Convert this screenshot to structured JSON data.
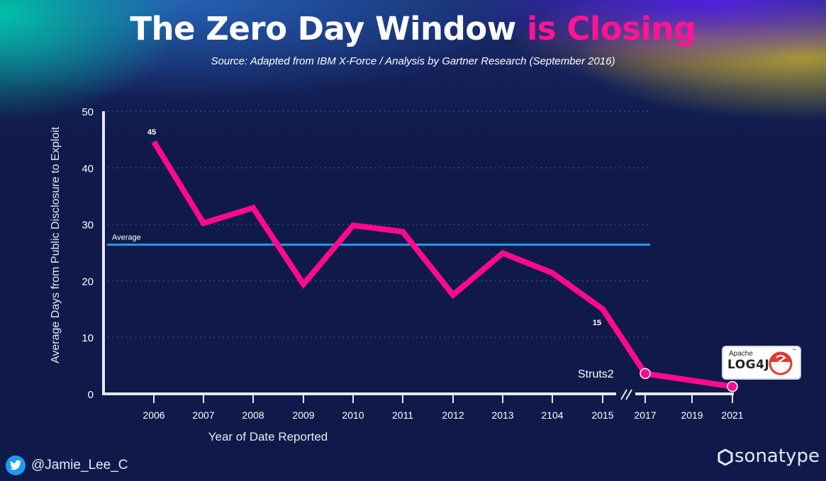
{
  "header": {
    "title_main": "The Zero Day Window ",
    "title_accent": "is Closing",
    "subtitle": "Source: Adapted from IBM X-Force / Analysis by Gartner Research (September 2016)"
  },
  "footer": {
    "twitter_handle": "@Jamie_Lee_C",
    "brand": "sonatype",
    "twitter_icon": "twitter-bird-icon",
    "brand_icon": "hexagon-icon"
  },
  "logo_badge": {
    "apache": "Apache",
    "name": "LOG4J",
    "tm": "™"
  },
  "colors": {
    "line": "#ff0a8c",
    "average": "#1ea0e6",
    "grid": "#4a4ab0",
    "axis": "#e6e8f0",
    "title_accent": "#ff1493",
    "background": "#101a4a"
  },
  "chart_data": {
    "type": "line",
    "title": "The Zero Day Window is Closing",
    "xlabel": "Year of Date Reported",
    "ylabel": "Average Days from Public Disclosure to Exploit",
    "ylim": [
      0,
      50
    ],
    "yticks": [
      0,
      10,
      20,
      30,
      40,
      50
    ],
    "grid": true,
    "categories": [
      "2006",
      "2007",
      "2008",
      "2009",
      "2010",
      "2011",
      "2012",
      "2013",
      "2104",
      "2015",
      "2017",
      "2019",
      "2021"
    ],
    "series": [
      {
        "name": "Average Days",
        "points": [
          {
            "x": "2006",
            "y": 44.6
          },
          {
            "x": "2007",
            "y": 30.2
          },
          {
            "x": "2008",
            "y": 32.9
          },
          {
            "x": "2009",
            "y": 19.4
          },
          {
            "x": "2010",
            "y": 29.8
          },
          {
            "x": "2011",
            "y": 28.7
          },
          {
            "x": "2012",
            "y": 17.5
          },
          {
            "x": "2013",
            "y": 24.9
          },
          {
            "x": "2104",
            "y": 21.4
          },
          {
            "x": "2015",
            "y": 15.0
          },
          {
            "x": "2017",
            "y": 3.6
          },
          {
            "x": "2021",
            "y": 1.3
          }
        ]
      }
    ],
    "average": {
      "label": "Average",
      "value": 26.4
    },
    "data_labels": [
      {
        "x": "2006",
        "text": "45"
      },
      {
        "x": "2015",
        "text": "15"
      }
    ],
    "annotations": [
      {
        "x": "2017",
        "text": "Struts2"
      },
      {
        "x": "2021",
        "text": "Apache LOG4J"
      }
    ],
    "axis_break_after": "2015"
  }
}
